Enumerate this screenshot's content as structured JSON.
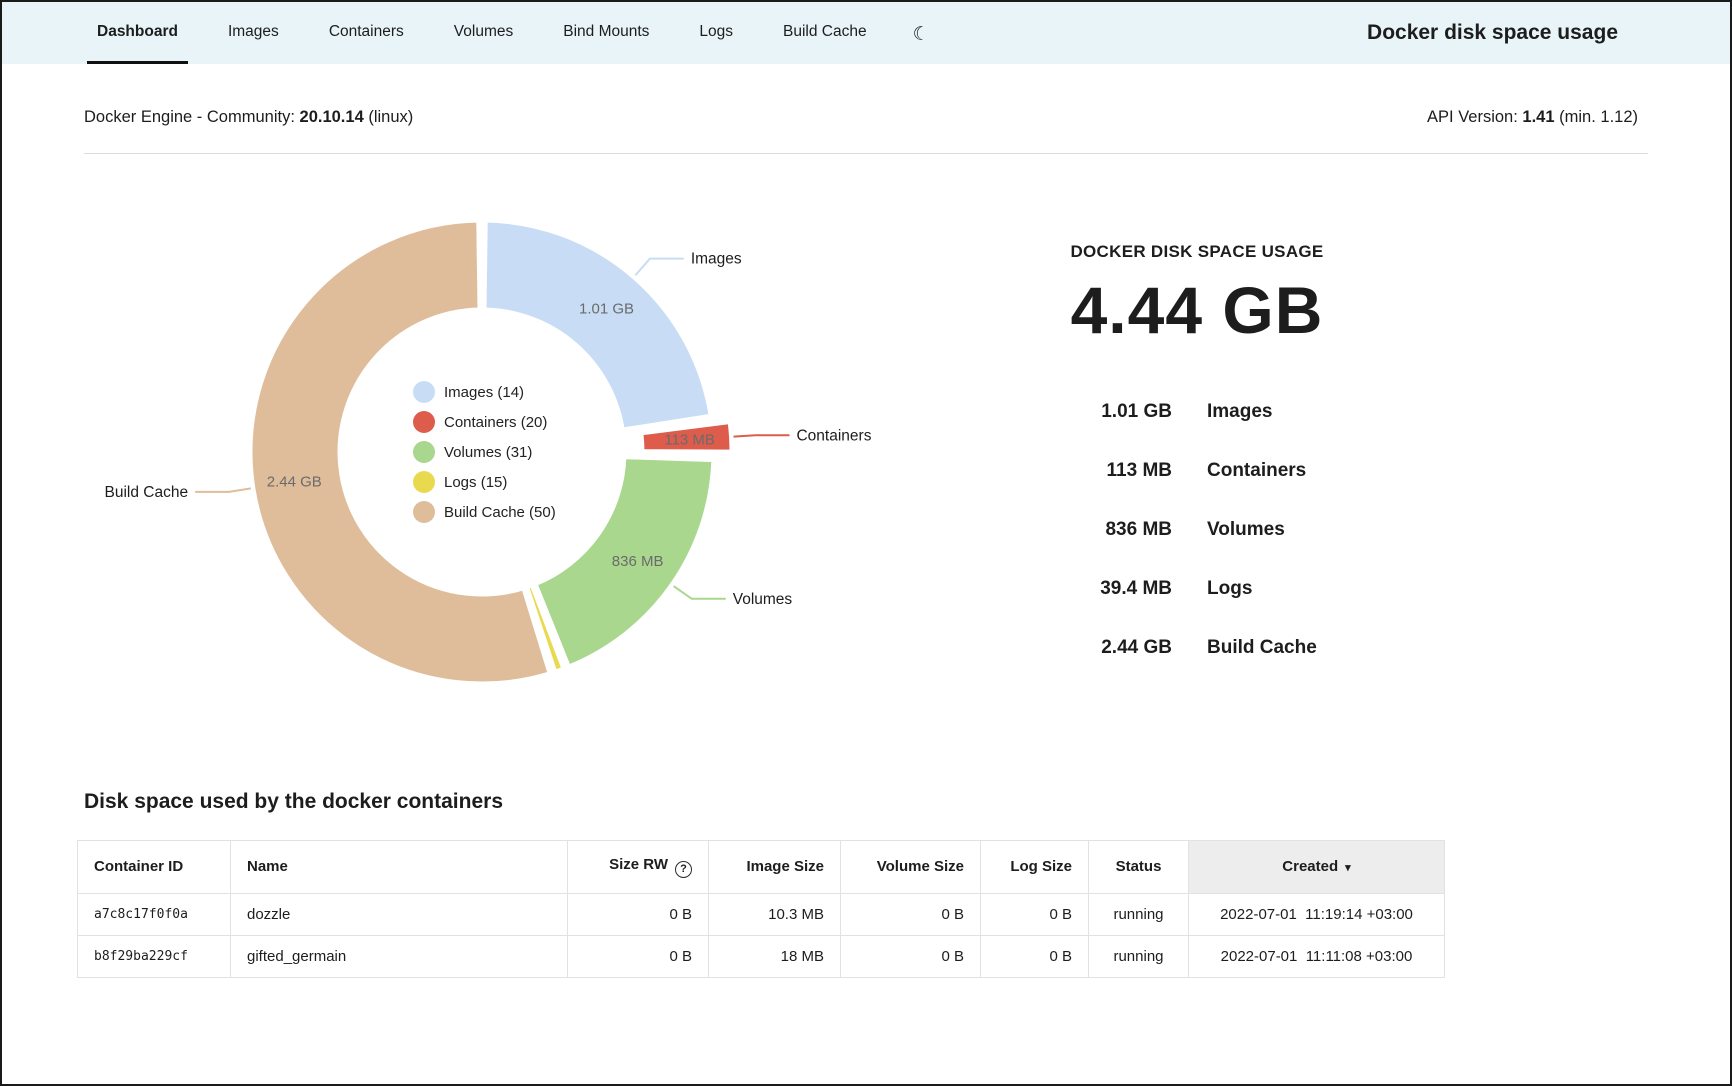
{
  "nav": {
    "tabs": [
      {
        "label": "Dashboard",
        "active": true
      },
      {
        "label": "Images",
        "active": false
      },
      {
        "label": "Containers",
        "active": false
      },
      {
        "label": "Volumes",
        "active": false
      },
      {
        "label": "Bind Mounts",
        "active": false
      },
      {
        "label": "Logs",
        "active": false
      },
      {
        "label": "Build Cache",
        "active": false
      }
    ],
    "moon_icon": "☾",
    "title": "Docker disk space usage"
  },
  "engine": {
    "label": "Docker Engine - Community:",
    "version": "20.10.14",
    "platform": "(linux)",
    "api_label": "API Version:",
    "api_version": "1.41",
    "api_min": "(min. 1.12)"
  },
  "chart_data": {
    "type": "pie",
    "title": "DOCKER DISK SPACE USAGE",
    "total_gb": 4.44,
    "total_label": "4.44 GB",
    "legend_position": "center",
    "slices": [
      {
        "name": "Images",
        "count": 14,
        "value_gb": 1.01,
        "size_label": "1.01 GB",
        "color": "#c9dcf6",
        "outer_label": true,
        "exploded": false
      },
      {
        "name": "Containers",
        "count": 20,
        "value_gb": 0.113,
        "size_label": "113 MB",
        "color": "#dd5c4b",
        "outer_label": true,
        "exploded": true
      },
      {
        "name": "Volumes",
        "count": 31,
        "value_gb": 0.836,
        "size_label": "836 MB",
        "color": "#a9d78e",
        "outer_label": true,
        "exploded": false
      },
      {
        "name": "Logs",
        "count": 15,
        "value_gb": 0.0394,
        "size_label": "39.4 MB",
        "color": "#e9d94f",
        "outer_label": false,
        "exploded": false
      },
      {
        "name": "Build Cache",
        "count": 50,
        "value_gb": 2.44,
        "size_label": "2.44 GB",
        "color": "#dfbd9b",
        "outer_label": true,
        "exploded": false
      }
    ]
  },
  "summary": {
    "heading": "DOCKER DISK SPACE USAGE",
    "total": "4.44 GB"
  },
  "table_section": {
    "heading": "Disk space used by the docker containers",
    "info_glyph": "?",
    "sort_glyph": "▾",
    "columns": [
      {
        "label": "Container ID",
        "align": "left",
        "info_icon": false,
        "sorted": false,
        "highlighted": false
      },
      {
        "label": "Name",
        "align": "left",
        "info_icon": false,
        "sorted": false,
        "highlighted": false
      },
      {
        "label": "Size RW",
        "align": "right",
        "info_icon": true,
        "sorted": false,
        "highlighted": false
      },
      {
        "label": "Image Size",
        "align": "right",
        "info_icon": false,
        "sorted": false,
        "highlighted": false
      },
      {
        "label": "Volume Size",
        "align": "right",
        "info_icon": false,
        "sorted": false,
        "highlighted": false
      },
      {
        "label": "Log Size",
        "align": "right",
        "info_icon": false,
        "sorted": false,
        "highlighted": false
      },
      {
        "label": "Status",
        "align": "center",
        "info_icon": false,
        "sorted": false,
        "highlighted": false
      },
      {
        "label": "Created",
        "align": "center",
        "info_icon": false,
        "sorted": true,
        "highlighted": true
      }
    ],
    "rows": [
      [
        "a7c8c17f0f0a",
        "dozzle",
        "0 B",
        "10.3 MB",
        "0 B",
        "0 B",
        "running",
        "2022-07-01  11:19:14 +03:00"
      ],
      [
        "b8f29ba229cf",
        "gifted_germain",
        "0 B",
        "18 MB",
        "0 B",
        "0 B",
        "running",
        "2022-07-01  11:11:08 +03:00"
      ]
    ]
  }
}
